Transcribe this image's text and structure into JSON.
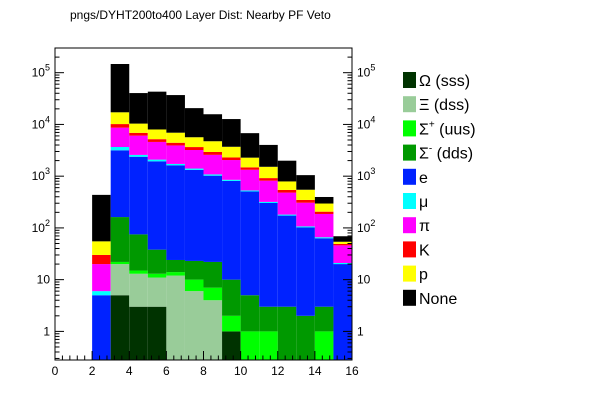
{
  "chart_data": {
    "type": "bar",
    "stacked": true,
    "title": "pngs/DYHT200to400 Layer Dist: Nearby PF Veto",
    "xlabel": "",
    "ylabel": "",
    "xlim": [
      0,
      16
    ],
    "ylim": [
      0.28,
      300000
    ],
    "yscale": "log",
    "grid": false,
    "legend_position": "right",
    "x_ticks": [
      "0",
      "2",
      "4",
      "6",
      "8",
      "10",
      "12",
      "14",
      "16"
    ],
    "y_ticks": [
      {
        "value": 1,
        "base": "1",
        "exp": ""
      },
      {
        "value": 10,
        "base": "10",
        "exp": ""
      },
      {
        "value": 100,
        "base": "10",
        "exp": "2"
      },
      {
        "value": 1000,
        "base": "10",
        "exp": "3"
      },
      {
        "value": 10000,
        "base": "10",
        "exp": "4"
      },
      {
        "value": 100000,
        "base": "10",
        "exp": "5"
      }
    ],
    "bins": [
      2,
      3,
      4,
      5,
      6,
      7,
      8,
      9,
      10,
      11,
      12,
      13,
      14,
      15
    ],
    "bin_width": 1,
    "series": [
      {
        "name": "Ω (sss)",
        "sym": "Ω",
        "sup": "",
        "rest": " (sss)",
        "color": "#003300",
        "values": [
          0,
          5,
          3,
          3,
          0,
          0,
          0,
          1,
          0,
          0,
          0,
          0,
          0,
          0
        ]
      },
      {
        "name": "Ξ (dss)",
        "sym": "Ξ",
        "sup": "",
        "rest": " (dss)",
        "color": "#99cc99",
        "values": [
          0,
          15,
          10,
          8,
          12,
          6,
          4,
          0,
          0,
          0,
          0,
          0,
          0,
          0
        ]
      },
      {
        "name": "Σ+ (uus)",
        "sym": "Σ",
        "sup": "+",
        "rest": " (uus)",
        "color": "#00ff00",
        "values": [
          0,
          2,
          2,
          2,
          2,
          4,
          3,
          1,
          1,
          1,
          0,
          0,
          1,
          0
        ]
      },
      {
        "name": "Σ- (dds)",
        "sym": "Σ",
        "sup": "-",
        "rest": " (dds)",
        "color": "#009900",
        "values": [
          0,
          140,
          60,
          25,
          10,
          13,
          15,
          8,
          4,
          2,
          3,
          2,
          2,
          0
        ]
      },
      {
        "name": "e",
        "sym": "e",
        "sup": "",
        "rest": "",
        "color": "#0022ff",
        "values": [
          5,
          3000,
          2300,
          1900,
          1600,
          1300,
          1000,
          800,
          500,
          300,
          170,
          100,
          60,
          20
        ]
      },
      {
        "name": "μ",
        "sym": "μ",
        "sup": "",
        "rest": "",
        "color": "#00ffff",
        "values": [
          1,
          500,
          200,
          150,
          100,
          80,
          60,
          40,
          25,
          15,
          8,
          5,
          3,
          1
        ]
      },
      {
        "name": "π",
        "sym": "π",
        "sup": "",
        "rest": "",
        "color": "#ff00ff",
        "values": [
          14,
          5000,
          3500,
          2500,
          2200,
          1800,
          1500,
          1200,
          800,
          500,
          300,
          200,
          120,
          25
        ]
      },
      {
        "name": "K",
        "sym": "K",
        "sup": "",
        "rest": "",
        "color": "#ff0000",
        "values": [
          10,
          1500,
          800,
          600,
          500,
          450,
          350,
          250,
          150,
          100,
          60,
          40,
          20,
          3
        ]
      },
      {
        "name": "p",
        "sym": "p",
        "sup": "",
        "rest": "",
        "color": "#ffff00",
        "values": [
          25,
          7000,
          3500,
          2800,
          2500,
          2000,
          1800,
          1400,
          800,
          600,
          250,
          200,
          90,
          5
        ]
      },
      {
        "name": "None",
        "sym": "None",
        "sup": "",
        "rest": "",
        "color": "#000000",
        "values": [
          380,
          130000,
          30000,
          35000,
          30000,
          15000,
          11000,
          9000,
          4500,
          2500,
          1200,
          500,
          100,
          15
        ]
      }
    ]
  }
}
